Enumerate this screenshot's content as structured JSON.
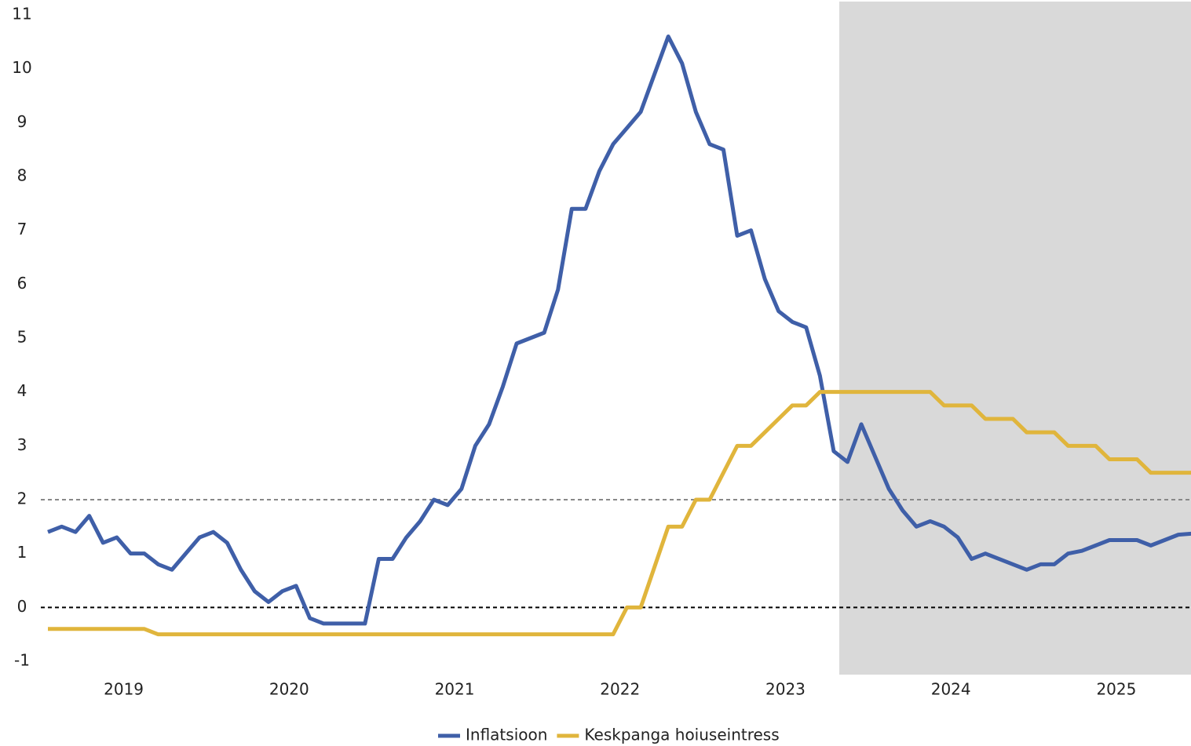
{
  "chart_data": {
    "type": "line",
    "categories": [
      "2019",
      null,
      null,
      null,
      null,
      null,
      null,
      null,
      null,
      null,
      null,
      null,
      "2020",
      null,
      null,
      null,
      null,
      null,
      null,
      null,
      null,
      null,
      null,
      null,
      "2021",
      null,
      null,
      null,
      null,
      null,
      null,
      null,
      null,
      null,
      null,
      null,
      "2022",
      null,
      null,
      null,
      null,
      null,
      null,
      null,
      null,
      null,
      null,
      null,
      "2023",
      null,
      null,
      null,
      null,
      null,
      null,
      null,
      null,
      null,
      null,
      null,
      "2024",
      null,
      null,
      null,
      null,
      null,
      null,
      null,
      null,
      null,
      null,
      null,
      "2025",
      null,
      null,
      null,
      null,
      null,
      null,
      null,
      null,
      null,
      null,
      null
    ],
    "series": [
      {
        "name": "Inflatsioon",
        "color": "#3f5fa8",
        "values": [
          1.4,
          1.5,
          1.4,
          1.7,
          1.2,
          1.3,
          1.0,
          1.0,
          0.8,
          0.7,
          1.0,
          1.3,
          1.4,
          1.2,
          0.7,
          0.3,
          0.1,
          0.3,
          0.4,
          -0.2,
          -0.3,
          -0.3,
          -0.3,
          -0.3,
          0.9,
          0.9,
          1.3,
          1.6,
          2.0,
          1.9,
          2.2,
          3.0,
          3.4,
          4.1,
          4.9,
          5.0,
          5.1,
          5.9,
          7.4,
          7.4,
          8.1,
          8.6,
          8.9,
          9.2,
          9.9,
          10.6,
          10.1,
          9.2,
          8.6,
          8.5,
          6.9,
          7.0,
          6.1,
          5.5,
          5.3,
          5.2,
          4.3,
          2.9,
          2.7,
          3.4,
          2.8,
          2.2,
          1.8,
          1.5,
          1.6,
          1.5,
          1.3,
          0.9,
          1.0,
          0.9,
          0.8,
          0.7,
          0.8,
          0.8,
          1.0,
          1.05,
          1.15,
          1.25,
          1.25,
          1.25,
          1.15,
          1.25,
          1.35,
          1.37
        ]
      },
      {
        "name": "Keskpanga hoiuseintress",
        "color": "#e0b53c",
        "values": [
          -0.4,
          -0.4,
          -0.4,
          -0.4,
          -0.4,
          -0.4,
          -0.4,
          -0.4,
          -0.5,
          -0.5,
          -0.5,
          -0.5,
          -0.5,
          -0.5,
          -0.5,
          -0.5,
          -0.5,
          -0.5,
          -0.5,
          -0.5,
          -0.5,
          -0.5,
          -0.5,
          -0.5,
          -0.5,
          -0.5,
          -0.5,
          -0.5,
          -0.5,
          -0.5,
          -0.5,
          -0.5,
          -0.5,
          -0.5,
          -0.5,
          -0.5,
          -0.5,
          -0.5,
          -0.5,
          -0.5,
          -0.5,
          -0.5,
          0,
          0,
          0.75,
          1.5,
          1.5,
          2.0,
          2.0,
          2.5,
          3.0,
          3.0,
          3.25,
          3.5,
          3.75,
          3.75,
          4.0,
          4.0,
          4.0,
          4.0,
          4.0,
          4.0,
          4.0,
          4.0,
          4.0,
          3.75,
          3.75,
          3.75,
          3.5,
          3.5,
          3.5,
          3.25,
          3.25,
          3.25,
          3.0,
          3.0,
          3.0,
          2.75,
          2.75,
          2.75,
          2.5,
          2.5,
          2.5,
          2.5
        ]
      }
    ],
    "ylim": [
      -1,
      11
    ],
    "yticks": [
      -1,
      0,
      1,
      2,
      3,
      4,
      5,
      6,
      7,
      8,
      9,
      10,
      11
    ],
    "reference_lines": [
      {
        "value": 2,
        "color": "#888888"
      },
      {
        "value": 0,
        "color": "#000000"
      }
    ],
    "legend": "bottom"
  }
}
